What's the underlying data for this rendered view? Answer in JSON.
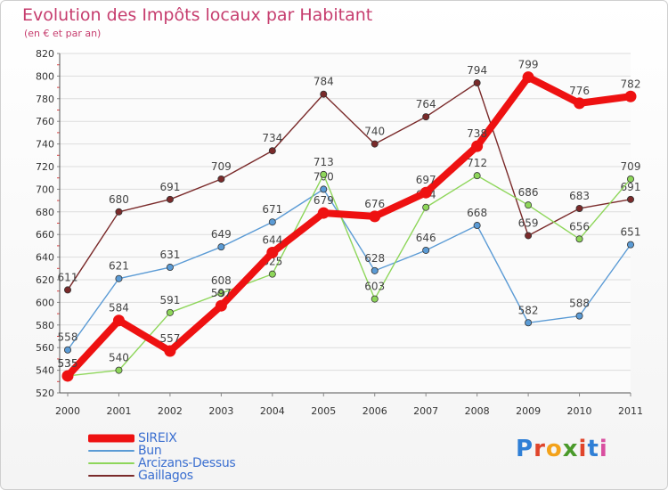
{
  "header": {
    "title": "Evolution des Impôts locaux par Habitant",
    "subtitle": "(en € et par an)"
  },
  "logo": {
    "text": "Proxiti",
    "colors": [
      "#2f7fd6",
      "#e0452b",
      "#f3a21a",
      "#4a9a2a",
      "#e0452b",
      "#2f7fd6",
      "#d94fa0"
    ]
  },
  "chart_data": {
    "type": "line",
    "title": "Evolution des Impôts locaux par Habitant",
    "subtitle": "(en € et par an)",
    "xlabel": "",
    "ylabel": "",
    "x": [
      "2000",
      "2001",
      "2002",
      "2003",
      "2004",
      "2005",
      "2006",
      "2007",
      "2008",
      "2009",
      "2010",
      "2011"
    ],
    "ylim": [
      520,
      820
    ],
    "yticks": [
      520,
      540,
      560,
      580,
      600,
      620,
      640,
      660,
      680,
      700,
      720,
      740,
      760,
      780,
      800,
      820
    ],
    "grid": "horizontal",
    "legend_position": "bottom-left",
    "series": [
      {
        "name": "Gaillagos",
        "color": "#7a2a2a",
        "values": [
          611,
          680,
          691,
          709,
          734,
          784,
          740,
          764,
          794,
          659,
          683,
          691
        ]
      },
      {
        "name": "Bun",
        "color": "#5b9bd5",
        "values": [
          558,
          621,
          631,
          649,
          671,
          700,
          628,
          646,
          668,
          582,
          588,
          651
        ]
      },
      {
        "name": "Arcizans-Dessus",
        "color": "#8ed65a",
        "values": [
          535,
          540,
          591,
          608,
          625,
          713,
          603,
          684,
          712,
          686,
          656,
          709
        ]
      },
      {
        "name": "SIREIX",
        "color": "#ee1111",
        "values": [
          535,
          584,
          557,
          597,
          644,
          679,
          676,
          697,
          738,
          799,
          776,
          782
        ]
      }
    ],
    "legend_order": [
      "SIREIX",
      "Bun",
      "Arcizans-Dessus",
      "Gaillagos"
    ]
  }
}
